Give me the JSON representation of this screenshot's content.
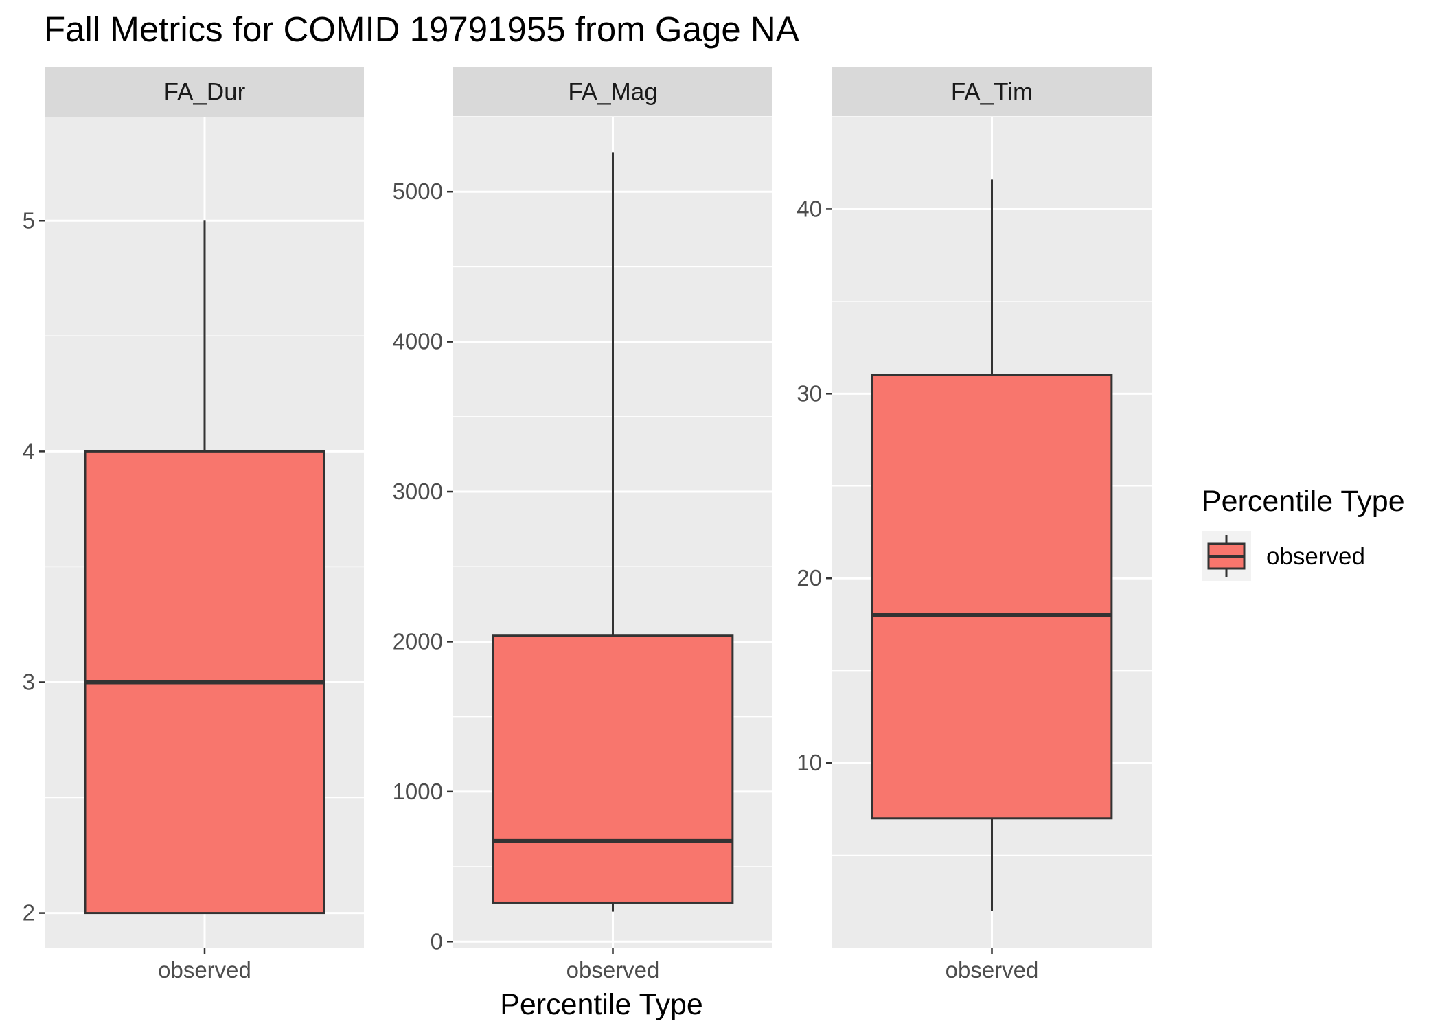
{
  "chart_data": {
    "type": "box",
    "title": "Fall Metrics for COMID 19791955 from Gage NA",
    "xlabel": "Percentile Type",
    "legend": {
      "title": "Percentile Type",
      "placement": "right",
      "entries": [
        {
          "label": "observed",
          "color": "#F8766D"
        }
      ]
    },
    "colors": {
      "panel_bg": "#EBEBEB",
      "strip_bg": "#D9D9D9",
      "grid": "#FFFFFF",
      "box_fill": "#F8766D",
      "box_line": "#333333"
    },
    "panels": [
      {
        "name": "FA_Dur",
        "category": "observed",
        "ylim": [
          1.85,
          5.45
        ],
        "yticks": [
          2,
          3,
          4,
          5
        ],
        "box": {
          "min": 2,
          "q1": 2,
          "median": 3,
          "q3": 4,
          "max": 5
        }
      },
      {
        "name": "FA_Mag",
        "category": "observed",
        "ylim": [
          -40,
          5500
        ],
        "yticks": [
          0,
          1000,
          2000,
          3000,
          4000,
          5000
        ],
        "box": {
          "min": 200,
          "q1": 260,
          "median": 670,
          "q3": 2040,
          "max": 5260
        }
      },
      {
        "name": "FA_Tim",
        "category": "observed",
        "ylim": [
          0,
          45
        ],
        "yticks": [
          10,
          20,
          30,
          40
        ],
        "box": {
          "min": 2,
          "q1": 7,
          "median": 18,
          "q3": 31,
          "max": 41.6
        }
      }
    ]
  }
}
